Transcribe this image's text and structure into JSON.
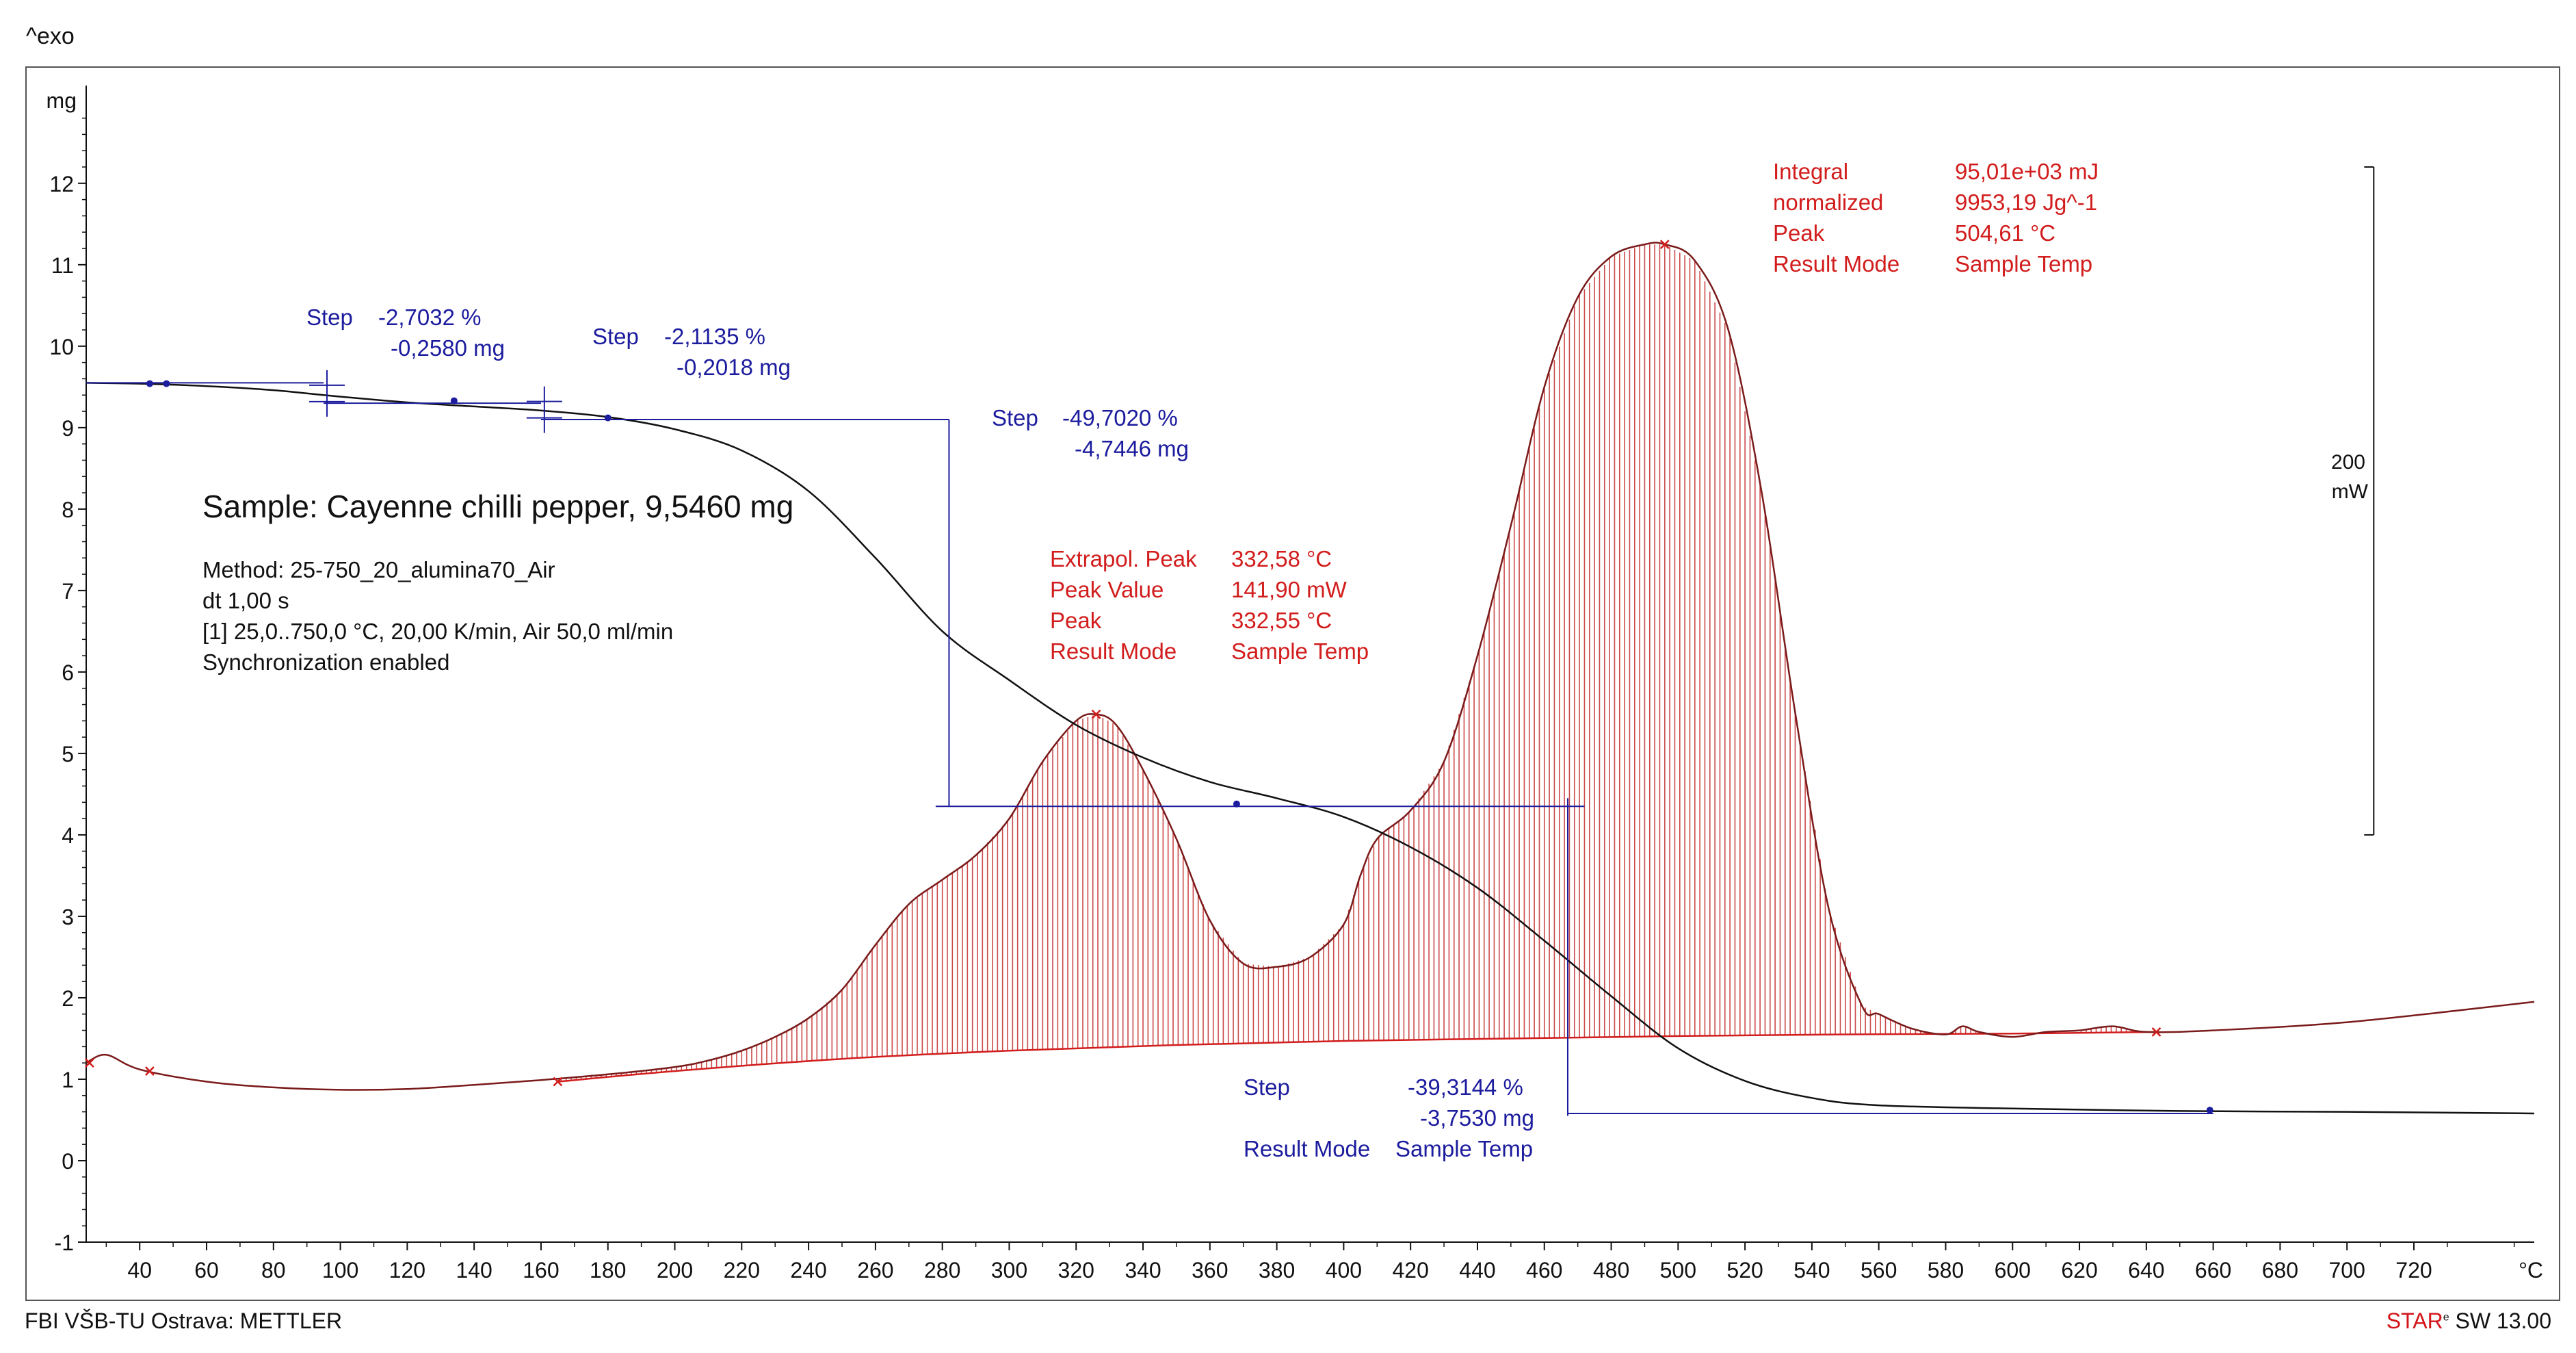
{
  "header": {
    "exo_label": "^exo"
  },
  "footer": {
    "left": "FBI VŠB-TU Ostrava: METTLER",
    "brand": "STAR",
    "mark": "e",
    "right": " SW 13.00"
  },
  "colors": {
    "tga": "#111111",
    "dsc": "#7a1a1a",
    "hatch": "#c22a2a",
    "baseline": "#d21d1d",
    "step": "#1c1c9e",
    "red_text": "#d21d1d"
  },
  "chart_data": {
    "type": "line",
    "title": "Sample: Cayenne chilli pepper, 9,5460 mg",
    "ylabel": "mg",
    "xlabel": "°C",
    "xlim": [
      24,
      756
    ],
    "ylim": [
      -1.0,
      13.2
    ],
    "x_ticks": [
      40,
      60,
      80,
      100,
      120,
      140,
      160,
      180,
      200,
      220,
      240,
      260,
      280,
      300,
      320,
      340,
      360,
      380,
      400,
      420,
      440,
      460,
      480,
      500,
      520,
      540,
      560,
      580,
      600,
      620,
      640,
      660,
      680,
      700,
      720
    ],
    "y_ticks": [
      -1,
      0,
      1,
      2,
      3,
      4,
      5,
      6,
      7,
      8,
      9,
      10,
      11,
      12
    ],
    "method_lines": [
      "Method: 25-750_20_alumina70_Air",
      "dt 1,00 s",
      "[1] 25,0..750,0 °C, 20,00 K/min, Air 50,0 ml/min",
      "Synchronization enabled"
    ],
    "scale_bar": {
      "label_value": "200",
      "label_unit": "mW",
      "top": 12.2,
      "bottom": 4.0,
      "x": 708
    },
    "series": [
      {
        "name": "TGA mass (mg)",
        "color": "#111111",
        "x": [
          24,
          40,
          60,
          80,
          100,
          120,
          140,
          160,
          180,
          200,
          220,
          240,
          260,
          280,
          300,
          320,
          340,
          360,
          380,
          400,
          420,
          440,
          460,
          480,
          500,
          520,
          540,
          560,
          600,
          650,
          700,
          756
        ],
        "y": [
          9.55,
          9.54,
          9.51,
          9.46,
          9.38,
          9.31,
          9.26,
          9.21,
          9.13,
          8.98,
          8.72,
          8.22,
          7.4,
          6.5,
          5.9,
          5.35,
          4.95,
          4.65,
          4.45,
          4.22,
          3.85,
          3.35,
          2.7,
          2.02,
          1.38,
          0.98,
          0.77,
          0.68,
          0.64,
          0.61,
          0.6,
          0.58
        ]
      },
      {
        "name": "DSC heat flow",
        "color": "#7a1a1a",
        "x": [
          24,
          30,
          40,
          60,
          80,
          100,
          120,
          140,
          160,
          180,
          200,
          210,
          220,
          230,
          240,
          250,
          260,
          270,
          280,
          290,
          300,
          310,
          320,
          326,
          332,
          340,
          350,
          360,
          370,
          380,
          390,
          400,
          405,
          410,
          420,
          430,
          440,
          450,
          460,
          470,
          480,
          490,
          496,
          505,
          515,
          525,
          535,
          545,
          555,
          560,
          570,
          580,
          585,
          590,
          600,
          610,
          620,
          630,
          640,
          660,
          700,
          756
        ],
        "y": [
          1.2,
          1.3,
          1.12,
          0.97,
          0.9,
          0.87,
          0.88,
          0.93,
          0.99,
          1.06,
          1.15,
          1.23,
          1.35,
          1.52,
          1.75,
          2.1,
          2.65,
          3.15,
          3.45,
          3.75,
          4.2,
          4.9,
          5.4,
          5.48,
          5.35,
          4.8,
          3.95,
          2.95,
          2.42,
          2.38,
          2.5,
          2.9,
          3.5,
          3.95,
          4.3,
          4.9,
          6.2,
          7.8,
          9.5,
          10.6,
          11.1,
          11.25,
          11.25,
          11.05,
          10.2,
          8.2,
          5.5,
          3.1,
          1.9,
          1.8,
          1.62,
          1.55,
          1.65,
          1.58,
          1.52,
          1.58,
          1.6,
          1.65,
          1.58,
          1.6,
          1.7,
          1.95
        ]
      },
      {
        "name": "DSC baseline",
        "color": "#d21d1d",
        "x": [
          165,
          200,
          250,
          300,
          350,
          400,
          450,
          500,
          550,
          600,
          643
        ],
        "y": [
          0.97,
          1.1,
          1.25,
          1.35,
          1.42,
          1.47,
          1.5,
          1.53,
          1.55,
          1.56,
          1.58
        ]
      }
    ],
    "step_annotations": [
      {
        "label": "Step",
        "percent": "-2,7032 %",
        "mass": "-0,2580 mg",
        "anchor_x": 43,
        "anchor_y": 10.0
      },
      {
        "label": "Step",
        "percent": "-2,1135 %",
        "mass": "-0,2018 mg",
        "anchor_x": 120,
        "anchor_y": 9.7
      },
      {
        "label": "Step",
        "percent": "-49,7020 %",
        "mass": "-4,7446 mg",
        "anchor_x": 293,
        "anchor_y": 8.9
      },
      {
        "label": "Step",
        "percent": "-39,3144 %",
        "mass": "-3,7530 mg",
        "result_label": "Result Mode",
        "result_value": "Sample Temp",
        "anchor_x": 356,
        "anchor_y": 0.6
      }
    ],
    "step_lines": [
      {
        "x1": 24,
        "y1": 9.55,
        "x2": 95,
        "y2": 9.55
      },
      {
        "x1": 95,
        "y1": 9.3,
        "x2": 160,
        "y2": 9.3
      },
      {
        "x1": 160,
        "y1": 9.1,
        "x2": 282,
        "y2": 9.1
      },
      {
        "x1": 282,
        "y1": 9.1,
        "x2": 282,
        "y2": 4.35
      },
      {
        "x1": 278,
        "y1": 4.35,
        "x2": 472,
        "y2": 4.35
      },
      {
        "x1": 467,
        "y1": 4.45,
        "x2": 467,
        "y2": 0.55
      },
      {
        "x1": 467,
        "y1": 0.58,
        "x2": 660,
        "y2": 0.58
      }
    ],
    "step_crosses": [
      {
        "x": 96,
        "y": 9.42
      },
      {
        "x": 161,
        "y": 9.22
      }
    ],
    "peak_annotations": [
      {
        "rows": [
          [
            "Extrapol. Peak",
            "332,58 °C"
          ],
          [
            "Peak Value",
            "141,90 mW"
          ],
          [
            "Peak",
            "332,55 °C"
          ],
          [
            "Result Mode",
            "Sample Temp"
          ]
        ]
      },
      {
        "rows": [
          [
            "Integral",
            "95,01e+03 mJ"
          ],
          [
            "  normalized",
            "9953,19 Jg^-1"
          ],
          [
            "Peak",
            "504,61 °C"
          ],
          [
            "Result Mode",
            "Sample Temp"
          ]
        ]
      }
    ],
    "markers": [
      {
        "x": 25,
        "y": 1.2,
        "series": "dsc-baseline"
      },
      {
        "x": 43,
        "y": 1.1,
        "series": "dsc-baseline"
      },
      {
        "x": 165,
        "y": 0.97,
        "series": "dsc-baseline"
      },
      {
        "x": 326,
        "y": 5.48,
        "series": "dsc-baseline"
      },
      {
        "x": 496,
        "y": 11.25,
        "series": "dsc-baseline"
      },
      {
        "x": 643,
        "y": 1.58,
        "series": "dsc-baseline"
      },
      {
        "x": 43,
        "y": 9.54,
        "series": "step"
      },
      {
        "x": 48,
        "y": 9.54,
        "series": "step"
      },
      {
        "x": 134,
        "y": 9.33,
        "series": "step"
      },
      {
        "x": 180,
        "y": 9.12,
        "series": "step"
      },
      {
        "x": 368,
        "y": 4.38,
        "series": "step"
      },
      {
        "x": 659,
        "y": 0.62,
        "series": "step"
      }
    ]
  }
}
